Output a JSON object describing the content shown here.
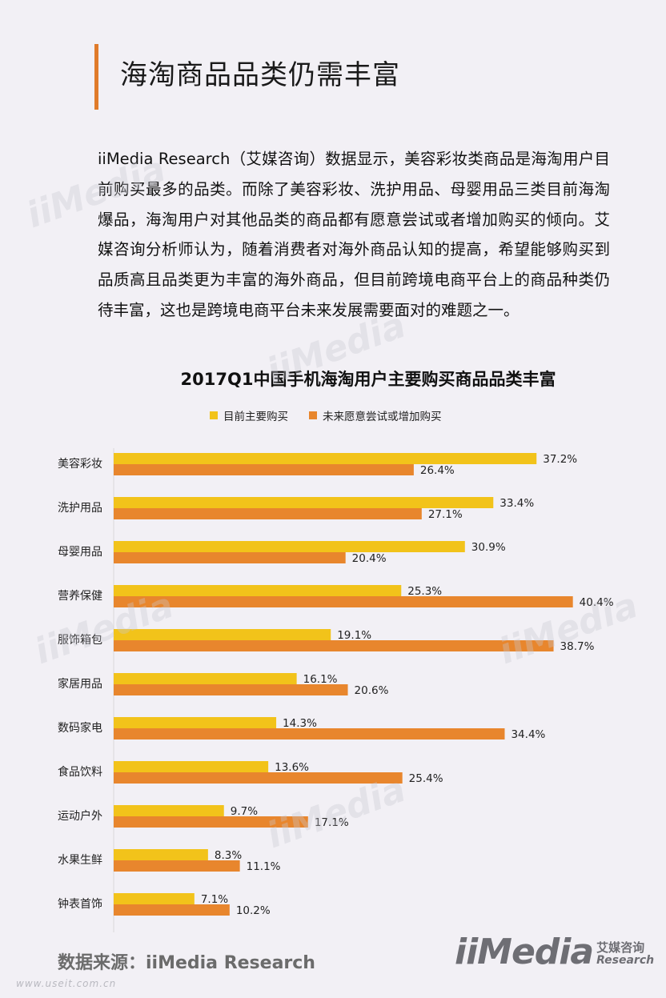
{
  "page": {
    "title": "海淘商品品类仍需丰富",
    "paragraph": "iiMedia Research（艾媒咨询）数据显示，美容彩妆类商品是海淘用户目前购买最多的品类。而除了美容彩妆、洗护用品、母婴用品三类目前海淘爆品，海淘用户对其他品类的商品都有愿意尝试或者增加购买的倾向。艾媒咨询分析师认为，随着消费者对海外商品认知的提高，希望能够购买到品质高且品类更为丰富的海外商品，但目前跨境电商平台上的商品种类仍待丰富，这也是跨境电商平台未来发展需要面对的难题之一。",
    "source": "数据来源：iiMedia Research",
    "footer_url": "www.useit.com.cn",
    "logo_main": "iiMedia",
    "logo_cn": "艾媒咨询",
    "logo_en": "Research",
    "watermark": "iiMedia"
  },
  "chart_data": {
    "type": "bar",
    "orientation": "horizontal",
    "title": "2017Q1中国手机海淘用户主要购买商品品类丰富",
    "categories": [
      "美容彩妆",
      "洗护用品",
      "母婴用品",
      "营养保健",
      "服饰箱包",
      "家居用品",
      "数码家电",
      "食品饮料",
      "运动户外",
      "水果生鲜",
      "钟表首饰"
    ],
    "series": [
      {
        "name": "目前主要购买",
        "color": "#f2c31a",
        "values": [
          37.2,
          33.4,
          30.9,
          25.3,
          19.1,
          16.1,
          14.3,
          13.6,
          9.7,
          8.3,
          7.1
        ]
      },
      {
        "name": "未来愿意尝试或增加购买",
        "color": "#e8862d",
        "values": [
          26.4,
          27.1,
          20.4,
          40.4,
          38.7,
          20.6,
          34.4,
          25.4,
          17.1,
          11.1,
          10.2
        ]
      }
    ],
    "value_suffix": "%",
    "legend_position": "top",
    "grid": false
  }
}
